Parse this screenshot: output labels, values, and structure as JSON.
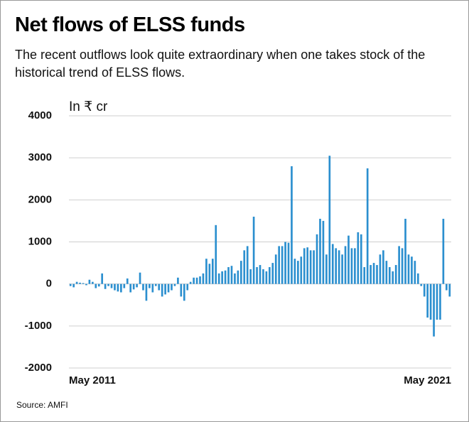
{
  "chart_data": {
    "type": "bar",
    "title": "Net flows of ELSS funds",
    "subtitle": "The recent outflows look quite extraordinary when one takes stock of the historical trend of ELSS flows.",
    "y_label": "In ₹ cr",
    "source": "Source: AMFI",
    "color": "#2b8fcf",
    "grid": true,
    "ylim": [
      -2000,
      4000
    ],
    "yticks": [
      -2000,
      -1000,
      0,
      1000,
      2000,
      3000,
      4000
    ],
    "categories": [
      "May 2011",
      null,
      null,
      null,
      null,
      null,
      null,
      null,
      null,
      null,
      null,
      null,
      null,
      null,
      null,
      null,
      null,
      null,
      null,
      null,
      null,
      null,
      null,
      null,
      null,
      null,
      null,
      null,
      null,
      null,
      null,
      null,
      null,
      null,
      null,
      null,
      null,
      null,
      null,
      null,
      null,
      null,
      null,
      null,
      null,
      null,
      null,
      null,
      null,
      null,
      null,
      null,
      null,
      null,
      null,
      null,
      null,
      null,
      null,
      null,
      null,
      null,
      null,
      null,
      null,
      null,
      null,
      null,
      null,
      null,
      null,
      null,
      null,
      null,
      null,
      null,
      null,
      null,
      null,
      null,
      null,
      null,
      null,
      null,
      null,
      null,
      null,
      null,
      null,
      null,
      null,
      null,
      null,
      null,
      null,
      null,
      null,
      null,
      null,
      null,
      null,
      null,
      null,
      null,
      null,
      null,
      null,
      null,
      null,
      null,
      null,
      null,
      null,
      null,
      null,
      null,
      null,
      null,
      null,
      null,
      "May 2021"
    ],
    "values": [
      -50,
      -80,
      50,
      30,
      20,
      -30,
      100,
      50,
      -100,
      -60,
      250,
      -120,
      -50,
      -100,
      -150,
      -180,
      -200,
      -100,
      130,
      -200,
      -130,
      -80,
      270,
      -150,
      -400,
      -100,
      -200,
      -50,
      -150,
      -300,
      -250,
      -200,
      -150,
      -50,
      150,
      -300,
      -400,
      -150,
      50,
      150,
      150,
      180,
      250,
      600,
      480,
      600,
      1400,
      250,
      300,
      320,
      400,
      430,
      250,
      320,
      550,
      800,
      900,
      350,
      1600,
      400,
      450,
      350,
      300,
      400,
      500,
      700,
      900,
      900,
      1000,
      980,
      2800,
      600,
      550,
      650,
      850,
      870,
      800,
      800,
      1180,
      1550,
      1500,
      700,
      3050,
      950,
      850,
      800,
      700,
      900,
      1150,
      850,
      850,
      1230,
      1180,
      400,
      2750,
      450,
      500,
      450,
      700,
      800,
      550,
      400,
      300,
      450,
      900,
      850,
      1550,
      700,
      650,
      550,
      250,
      -50,
      -300,
      -800,
      -850,
      -1250,
      -850,
      -850,
      1550,
      -150,
      -300
    ]
  }
}
